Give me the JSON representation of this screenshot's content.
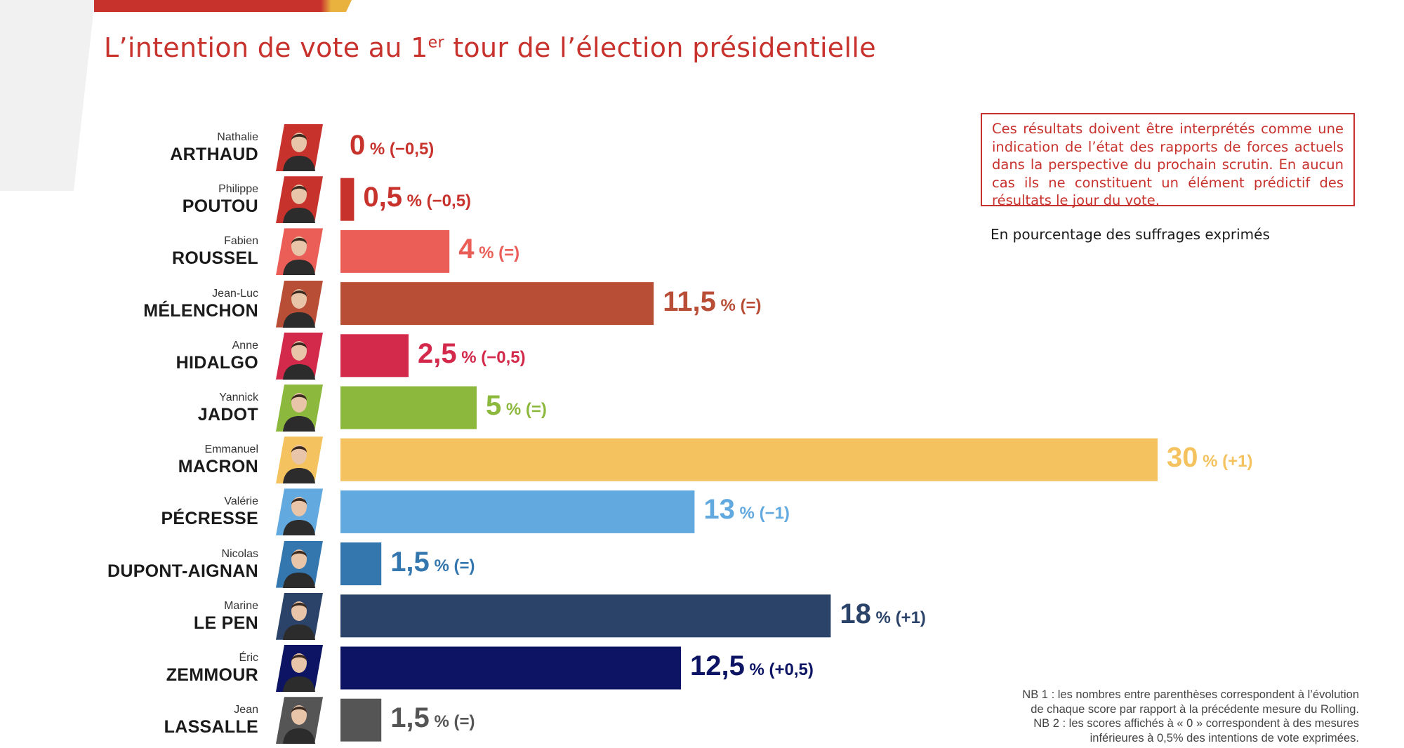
{
  "title": {
    "main": "L’intention de vote au 1",
    "sup": "er",
    "rest": " tour de l’élection présidentielle"
  },
  "disclaimer": "Ces résultats doivent être interprétés comme une indication de l’état des rapports de forces actuels dans la perspective du prochain scrutin. En aucun cas ils ne constituent un élément prédictif des résultats le jour du vote.",
  "unit_note": "En pourcentage des suffrages exprimés",
  "footnote": [
    "NB 1 : les nombres entre parenthèses correspondent à l’évolution",
    "de chaque score par rapport à la précédente mesure du Rolling.",
    "NB 2 : les scores affichés à « 0 » correspondent à des mesures",
    "inférieures à 0,5% des intentions de vote exprimées."
  ],
  "chart_data": {
    "type": "bar",
    "orientation": "horizontal",
    "unit": "%",
    "xlim": [
      0,
      30
    ],
    "grid": false,
    "legend": "none",
    "categories": [
      {
        "first": "Nathalie",
        "last": "ARTHAUD",
        "value": 0,
        "label": "0",
        "change": "% (−0,5)",
        "color": "#c8322d"
      },
      {
        "first": "Philippe",
        "last": "POUTOU",
        "value": 0.5,
        "label": "0,5",
        "change": "% (−0,5)",
        "color": "#c8322d"
      },
      {
        "first": "Fabien",
        "last": "ROUSSEL",
        "value": 4,
        "label": "4",
        "change": "% (=)",
        "color": "#eb5e58"
      },
      {
        "first": "Jean-Luc",
        "last": "MÉLENCHON",
        "value": 11.5,
        "label": "11,5",
        "change": "% (=)",
        "color": "#b94e37"
      },
      {
        "first": "Anne",
        "last": "HIDALGO",
        "value": 2.5,
        "label": "2,5",
        "change": "% (−0,5)",
        "color": "#d3294a"
      },
      {
        "first": "Yannick",
        "last": "JADOT",
        "value": 5,
        "label": "5",
        "change": "% (=)",
        "color": "#8cb83e"
      },
      {
        "first": "Emmanuel",
        "last": "MACRON",
        "value": 30,
        "label": "30",
        "change": "% (+1)",
        "color": "#f4c35f"
      },
      {
        "first": "Valérie",
        "last": "PÉCRESSE",
        "value": 13,
        "label": "13",
        "change": "% (−1)",
        "color": "#62a9df"
      },
      {
        "first": "Nicolas",
        "last": "DUPONT-AIGNAN",
        "value": 1.5,
        "label": "1,5",
        "change": "% (=)",
        "color": "#3476ae"
      },
      {
        "first": "Marine",
        "last": "LE PEN",
        "value": 18,
        "label": "18",
        "change": "% (+1)",
        "color": "#2b4369"
      },
      {
        "first": "Éric",
        "last": "ZEMMOUR",
        "value": 12.5,
        "label": "12,5",
        "change": "% (+0,5)",
        "color": "#0c1463"
      },
      {
        "first": "Jean",
        "last": "LASSALLE",
        "value": 1.5,
        "label": "1,5",
        "change": "% (=)",
        "color": "#555555"
      }
    ]
  }
}
